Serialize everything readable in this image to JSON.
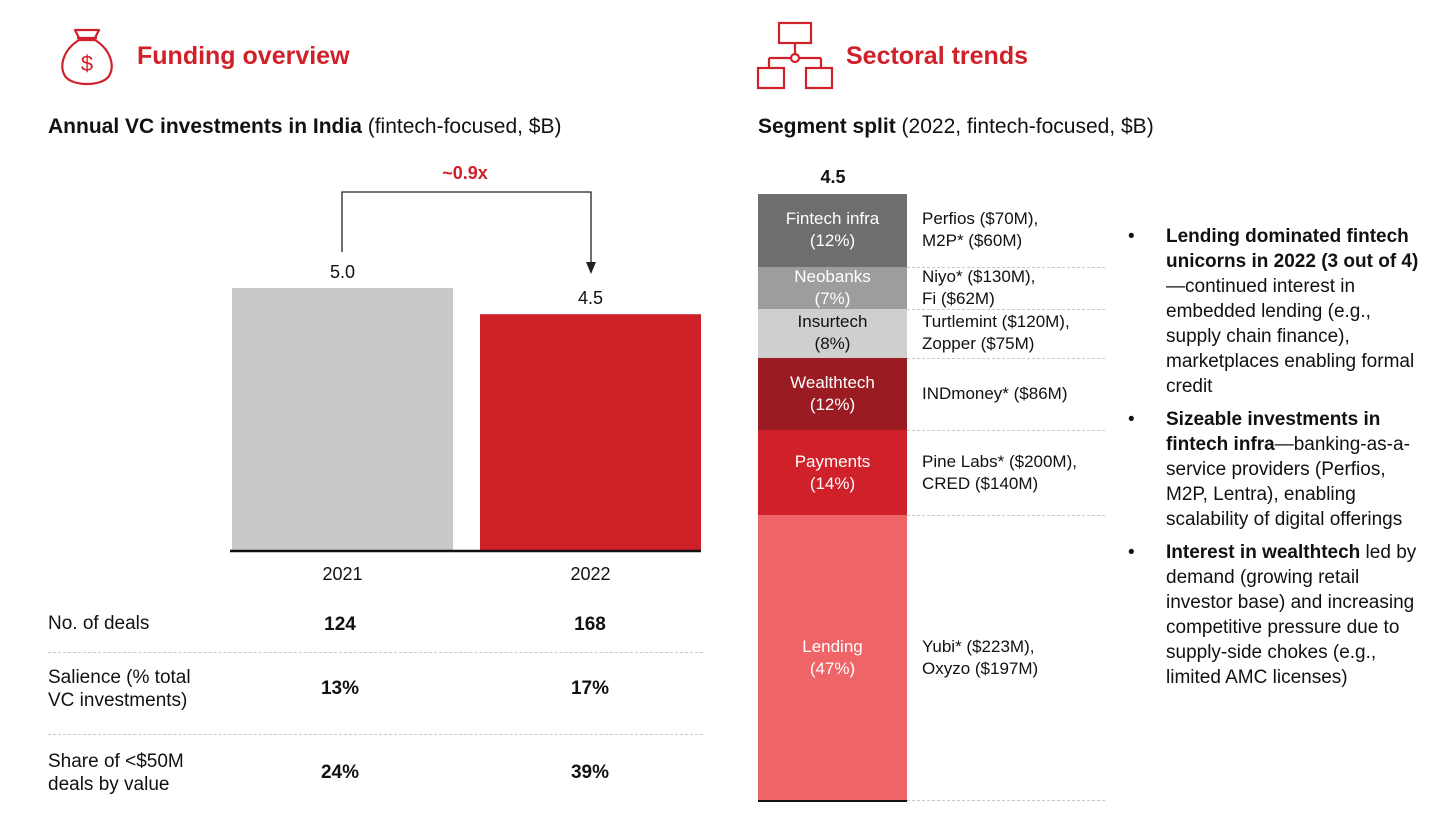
{
  "colors": {
    "accent_red": "#d0202a",
    "bar_2021": "#c8c8c8",
    "bar_2022": "#cd2027",
    "seg_fintech_infra": "#6e6e6e",
    "seg_neobanks": "#9d9d9d",
    "seg_insurtech": "#cfcfcf",
    "seg_wealthtech": "#9b1b22",
    "seg_payments": "#d0202a",
    "seg_lending": "#ef6466"
  },
  "left": {
    "icon": "money-bag-icon",
    "section_title": "Funding overview",
    "subtitle_bold": "Annual VC investments in India",
    "subtitle_rest": " (fintech-focused, $B)",
    "change_label": "~0.9x",
    "table": [
      {
        "label": "No. of deals",
        "v2021": "124",
        "v2022": "168"
      },
      {
        "label": "Salience (% total\nVC investments)",
        "v2021": "13%",
        "v2022": "17%"
      },
      {
        "label": "Share of <$50M\ndeals by value",
        "v2021": "24%",
        "v2022": "39%"
      }
    ]
  },
  "right": {
    "icon": "org-chart-icon",
    "section_title": "Sectoral trends",
    "subtitle_bold": "Segment split",
    "subtitle_rest": " (2022, fintech-focused, $B)",
    "total_label": "4.5",
    "segment_examples": [
      {
        "segment": "Fintech infra",
        "examples": "Perfios ($70M),\nM2P* ($60M)"
      },
      {
        "segment": "Neobanks",
        "examples": "Niyo* ($130M),\nFi ($62M)"
      },
      {
        "segment": "Insurtech",
        "examples": "Turtlemint ($120M),\nZopper ($75M)"
      },
      {
        "segment": "Wealthtech",
        "examples": "INDmoney* ($86M)"
      },
      {
        "segment": "Payments",
        "examples": "Pine Labs* ($200M),\nCRED ($140M)"
      },
      {
        "segment": "Lending",
        "examples": "Yubi* ($223M),\nOxyzo ($197M)"
      }
    ],
    "bullets": [
      {
        "bold": "Lending dominated fintech unicorns in 2022 (3 out of 4)",
        "rest": "—continued interest in embedded lending (e.g., supply chain finance), marketplaces enabling formal credit"
      },
      {
        "bold": "Sizeable investments in fintech infra",
        "rest": "—banking-as-a-service providers (Perfios, M2P, Lentra), enabling scalability of digital offerings"
      },
      {
        "bold": "Interest in wealthtech",
        "rest": " led by demand (growing retail investor base) and increasing competitive pressure due to supply-side chokes (e.g., limited AMC licenses)"
      }
    ],
    "bullet_symbol": "•"
  },
  "chart_data": [
    {
      "type": "bar",
      "title": "Annual VC investments in India (fintech-focused, $B)",
      "categories": [
        "2021",
        "2022"
      ],
      "values": [
        5.0,
        4.5
      ],
      "value_labels": [
        "5.0",
        "4.5"
      ],
      "ylim": [
        0,
        5.0
      ],
      "grid": false
    },
    {
      "type": "bar",
      "stacked": true,
      "title": "Segment split (2022, fintech-focused, $B)",
      "total": 4.5,
      "series": [
        {
          "name": "Fintech infra",
          "percent": 12,
          "label": "(12%)"
        },
        {
          "name": "Neobanks",
          "percent": 7,
          "label": "(7%)"
        },
        {
          "name": "Insurtech",
          "percent": 8,
          "label": "(8%)"
        },
        {
          "name": "Wealthtech",
          "percent": 12,
          "label": "(12%)"
        },
        {
          "name": "Payments",
          "percent": 14,
          "label": "(14%)"
        },
        {
          "name": "Lending",
          "percent": 47,
          "label": "(47%)"
        }
      ]
    }
  ]
}
